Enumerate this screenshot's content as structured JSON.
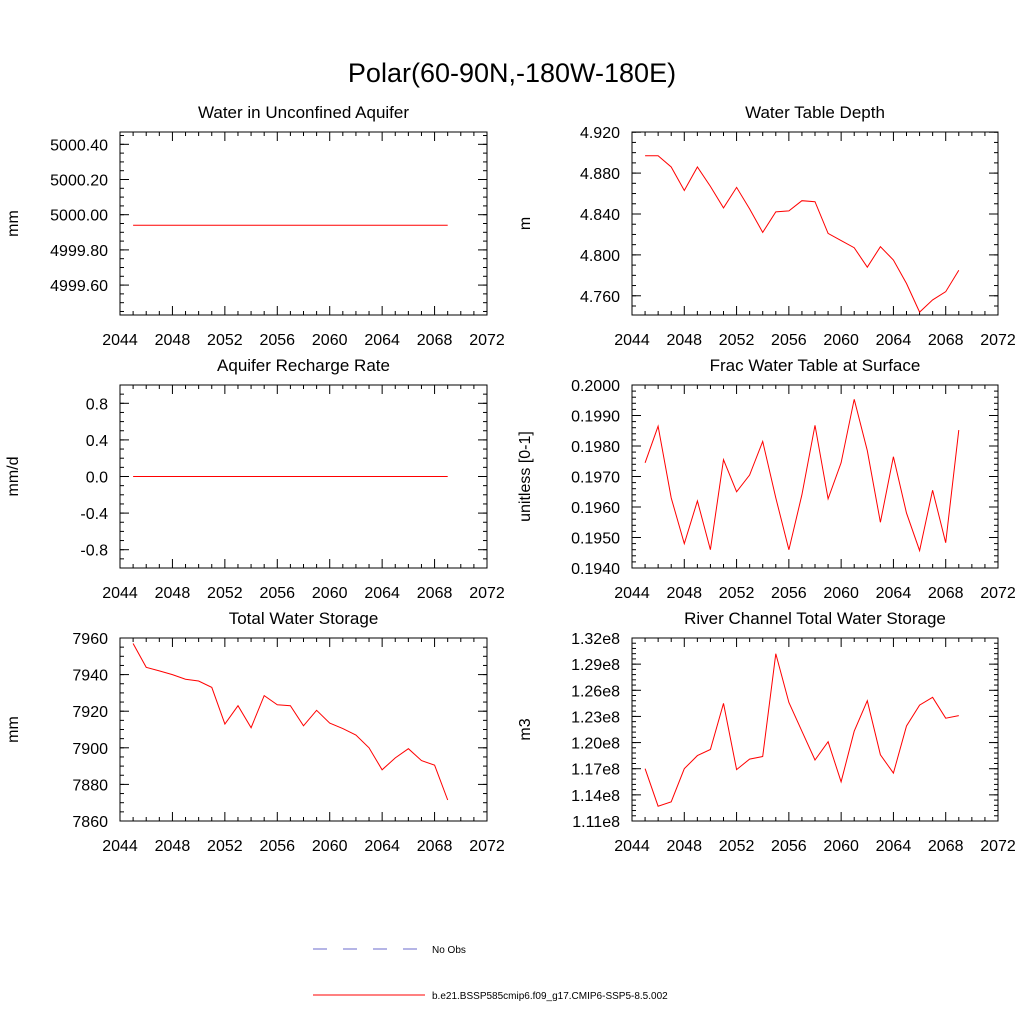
{
  "figure_title": "Polar(60-90N,-180W-180E)",
  "legend": [
    {
      "label": "No Obs",
      "color": "#6b6bcc",
      "style": "dashed"
    },
    {
      "label": "b.e21.BSSP585cmip6.f09_g17.CMIP6-SSP5-8.5.002",
      "color": "#ff0000",
      "style": "solid"
    }
  ],
  "chart_data": [
    {
      "type": "line",
      "title": "Water in Unconfined Aquifer",
      "ylabel": "mm",
      "xlim": [
        2044,
        2072
      ],
      "x_ticks": [
        2044,
        2048,
        2052,
        2056,
        2060,
        2064,
        2068,
        2072
      ],
      "ylim": [
        4999.43,
        5000.47
      ],
      "y_ticks": [
        4999.6,
        4999.8,
        5000.0,
        5000.2,
        5000.4
      ],
      "y_tick_labels": [
        "4999.60",
        "4999.80",
        "5000.00",
        "5000.20",
        "5000.40"
      ],
      "y_minor": 0.05,
      "x": [
        2045,
        2046,
        2047,
        2048,
        2049,
        2050,
        2051,
        2052,
        2053,
        2054,
        2055,
        2056,
        2057,
        2058,
        2059,
        2060,
        2061,
        2062,
        2063,
        2064,
        2065,
        2066,
        2067,
        2068,
        2069
      ],
      "values": [
        4999.94,
        4999.94,
        4999.94,
        4999.94,
        4999.94,
        4999.94,
        4999.94,
        4999.94,
        4999.94,
        4999.94,
        4999.94,
        4999.94,
        4999.94,
        4999.94,
        4999.94,
        4999.94,
        4999.94,
        4999.94,
        4999.94,
        4999.94,
        4999.94,
        4999.94,
        4999.94,
        4999.94,
        4999.94
      ]
    },
    {
      "type": "line",
      "title": "Water Table Depth",
      "ylabel": "m",
      "xlim": [
        2044,
        2072
      ],
      "x_ticks": [
        2044,
        2048,
        2052,
        2056,
        2060,
        2064,
        2068,
        2072
      ],
      "ylim": [
        4.7412,
        4.9202
      ],
      "y_ticks": [
        4.76,
        4.8,
        4.84,
        4.88,
        4.92
      ],
      "y_tick_labels": [
        "4.760",
        "4.800",
        "4.840",
        "4.880",
        "4.920"
      ],
      "y_minor": 0.01,
      "x": [
        2045,
        2046,
        2047,
        2048,
        2049,
        2050,
        2051,
        2052,
        2053,
        2054,
        2055,
        2056,
        2057,
        2058,
        2059,
        2060,
        2061,
        2062,
        2063,
        2064,
        2065,
        2066,
        2067,
        2068,
        2069
      ],
      "values": [
        4.897,
        4.897,
        4.886,
        4.863,
        4.886,
        4.867,
        4.846,
        4.866,
        4.845,
        4.822,
        4.842,
        4.843,
        4.853,
        4.852,
        4.821,
        4.814,
        4.807,
        4.788,
        4.808,
        4.795,
        4.772,
        4.744,
        4.756,
        4.764,
        4.785
      ]
    },
    {
      "type": "line",
      "title": "Aquifer Recharge Rate",
      "ylabel": "mm/d",
      "xlim": [
        2044,
        2072
      ],
      "x_ticks": [
        2044,
        2048,
        2052,
        2056,
        2060,
        2064,
        2068,
        2072
      ],
      "ylim": [
        -1.0,
        1.0
      ],
      "y_ticks": [
        -0.8,
        -0.4,
        0.0,
        0.4,
        0.8
      ],
      "y_tick_labels": [
        "-0.8",
        "-0.4",
        "0.0",
        "0.4",
        "0.8"
      ],
      "y_minor": 0.1,
      "x": [
        2045,
        2046,
        2047,
        2048,
        2049,
        2050,
        2051,
        2052,
        2053,
        2054,
        2055,
        2056,
        2057,
        2058,
        2059,
        2060,
        2061,
        2062,
        2063,
        2064,
        2065,
        2066,
        2067,
        2068,
        2069
      ],
      "values": [
        0.0,
        0.0,
        0.0,
        0.0,
        0.0,
        0.0,
        0.0,
        0.0,
        0.0,
        0.0,
        0.0,
        0.0,
        0.0,
        0.0,
        0.0,
        0.0,
        0.0,
        0.0,
        0.0,
        0.0,
        0.0,
        0.0,
        0.0,
        0.0,
        0.0
      ]
    },
    {
      "type": "line",
      "title": "Frac Water Table at Surface",
      "ylabel": "unitless [0-1]",
      "xlim": [
        2044,
        2072
      ],
      "x_ticks": [
        2044,
        2048,
        2052,
        2056,
        2060,
        2064,
        2068,
        2072
      ],
      "ylim": [
        0.194,
        0.2
      ],
      "y_ticks": [
        0.194,
        0.195,
        0.196,
        0.197,
        0.198,
        0.199,
        0.2
      ],
      "y_tick_labels": [
        "0.1940",
        "0.1950",
        "0.1960",
        "0.1970",
        "0.1980",
        "0.1990",
        "0.2000"
      ],
      "y_minor": 0.0002,
      "x": [
        2045,
        2046,
        2047,
        2048,
        2049,
        2050,
        2051,
        2052,
        2053,
        2054,
        2055,
        2056,
        2057,
        2058,
        2059,
        2060,
        2061,
        2062,
        2063,
        2064,
        2065,
        2066,
        2067,
        2068,
        2069
      ],
      "values": [
        0.19745,
        0.19865,
        0.1963,
        0.1948,
        0.1962,
        0.1946,
        0.19755,
        0.1965,
        0.19705,
        0.19815,
        0.1963,
        0.1946,
        0.1964,
        0.19868,
        0.19627,
        0.19745,
        0.19953,
        0.19785,
        0.1955,
        0.19765,
        0.1958,
        0.19457,
        0.19655,
        0.19483,
        0.19852
      ]
    },
    {
      "type": "line",
      "title": "Total Water Storage",
      "ylabel": "mm",
      "xlim": [
        2044,
        2072
      ],
      "x_ticks": [
        2044,
        2048,
        2052,
        2056,
        2060,
        2064,
        2068,
        2072
      ],
      "ylim": [
        7860,
        7960
      ],
      "y_ticks": [
        7860,
        7880,
        7900,
        7920,
        7940,
        7960
      ],
      "y_tick_labels": [
        "7860",
        "7880",
        "7900",
        "7920",
        "7940",
        "7960"
      ],
      "y_minor": 5,
      "x": [
        2045,
        2046,
        2047,
        2048,
        2049,
        2050,
        2051,
        2052,
        2053,
        2054,
        2055,
        2056,
        2057,
        2058,
        2059,
        2060,
        2061,
        2062,
        2063,
        2064,
        2065,
        2066,
        2067,
        2068,
        2069
      ],
      "values": [
        7957,
        7944,
        7942,
        7940,
        7937.5,
        7936.5,
        7933,
        7913,
        7923,
        7911,
        7928.5,
        7923.5,
        7923,
        7912,
        7920.5,
        7913.5,
        7910.5,
        7907,
        7900,
        7888,
        7894.5,
        7899.5,
        7893,
        7890.5,
        7871.5
      ]
    },
    {
      "type": "line",
      "title": "River Channel Total Water Storage",
      "ylabel": "m3",
      "xlim": [
        2044,
        2072
      ],
      "x_ticks": [
        2044,
        2048,
        2052,
        2056,
        2060,
        2064,
        2068,
        2072
      ],
      "ylim": [
        111000000,
        132000000
      ],
      "y_ticks": [
        111000000,
        114000000,
        117000000,
        120000000,
        123000000,
        126000000,
        129000000,
        132000000
      ],
      "y_tick_labels": [
        "1.11e8",
        "1.14e8",
        "1.17e8",
        "1.20e8",
        "1.23e8",
        "1.26e8",
        "1.29e8",
        "1.32e8"
      ],
      "y_minor": 600000,
      "x": [
        2045,
        2046,
        2047,
        2048,
        2049,
        2050,
        2051,
        2052,
        2053,
        2054,
        2055,
        2056,
        2057,
        2058,
        2059,
        2060,
        2061,
        2062,
        2063,
        2064,
        2065,
        2066,
        2067,
        2068,
        2069
      ],
      "values": [
        117000000,
        112700000,
        113200000,
        117000000,
        118500000,
        119200000,
        124500000,
        116900000,
        118100000,
        118400000,
        130200000,
        124600000,
        121300000,
        118000000,
        120100000,
        115500000,
        121300000,
        124800000,
        118600000,
        116500000,
        121900000,
        124300000,
        125200000,
        122800000,
        123100000
      ]
    }
  ]
}
